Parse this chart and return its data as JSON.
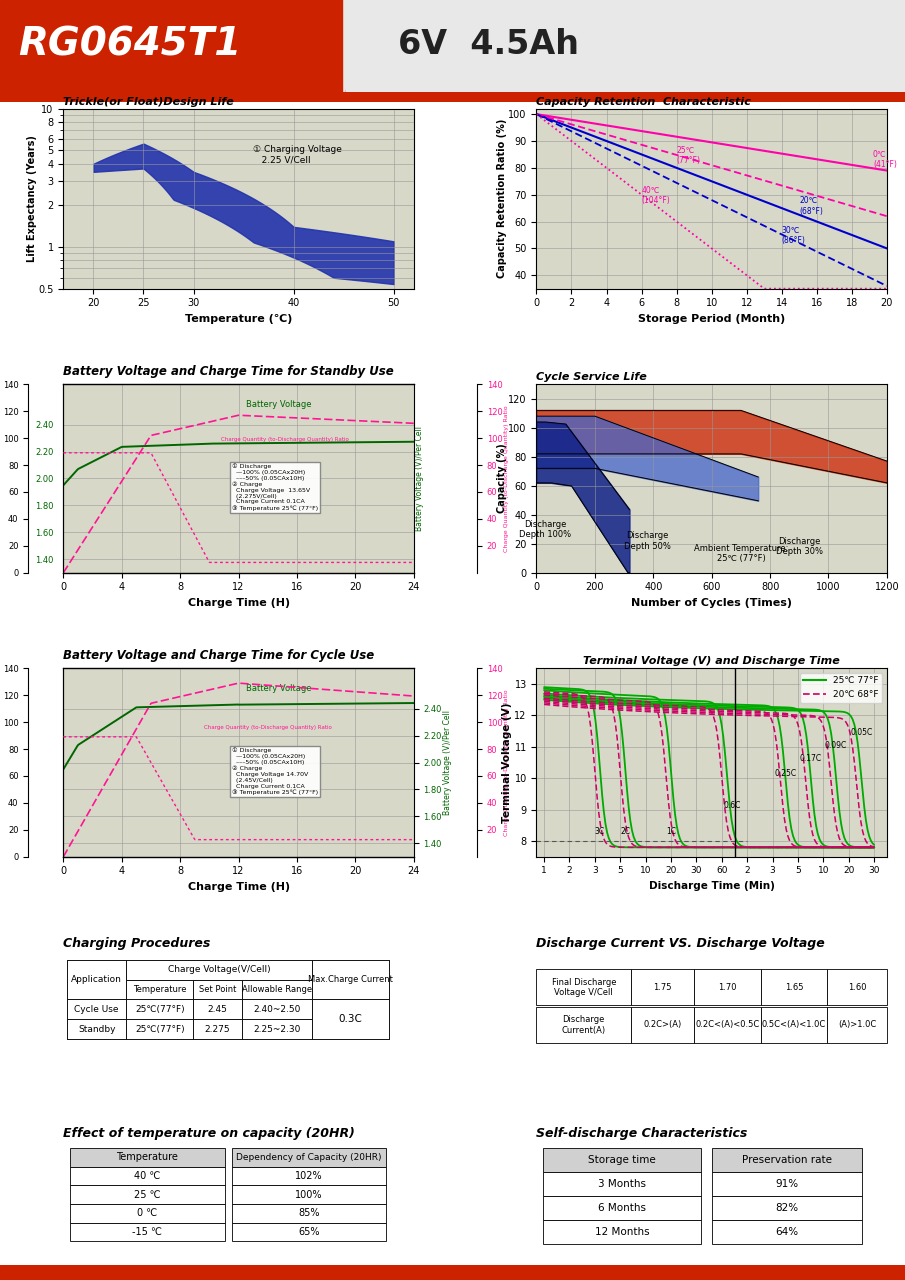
{
  "title_model": "RG0645T1",
  "title_spec": "6V  4.5Ah",
  "header_bg": "#CC2200",
  "grid_bg": "#D8D8C8",
  "chart_border": "#000000",
  "trickle_title": "Trickle(or Float)Design Life",
  "trickle_xlabel": "Temperature (℃)",
  "trickle_ylabel": "Lift Expectancy (Years)",
  "trickle_annotation": "① Charging Voltage\n2.25 V/Cell",
  "capacity_title": "Capacity Retention  Characteristic",
  "capacity_xlabel": "Storage Period (Month)",
  "capacity_ylabel": "Capacity Retention Ratio (%)",
  "bv_standby_title": "Battery Voltage and Charge Time for Standby Use",
  "bv_cycle_title": "Battery Voltage and Charge Time for Cycle Use",
  "bv_xlabel": "Charge Time (H)",
  "cycle_life_title": "Cycle Service Life",
  "cycle_xlabel": "Number of Cycles (Times)",
  "cycle_ylabel": "Capacity (%)",
  "terminal_title": "Terminal Voltage (V) and Discharge Time",
  "terminal_xlabel": "Discharge Time (Min)",
  "terminal_ylabel": "Terminal Voltage (V)",
  "charging_proc_title": "Charging Procedures",
  "discharge_vs_title": "Discharge Current VS. Discharge Voltage",
  "effect_temp_title": "Effect of temperature on capacity (20HR)",
  "effect_temp_data": [
    [
      "40 ℃",
      "102%"
    ],
    [
      "25 ℃",
      "100%"
    ],
    [
      "0 ℃",
      "85%"
    ],
    [
      "-15 ℃",
      "65%"
    ]
  ],
  "self_discharge_title": "Self-discharge Characteristics",
  "self_discharge_data": [
    [
      "3 Months",
      "91%"
    ],
    [
      "6 Months",
      "82%"
    ],
    [
      "12 Months",
      "64%"
    ]
  ],
  "footer_bg": "#CC2200"
}
